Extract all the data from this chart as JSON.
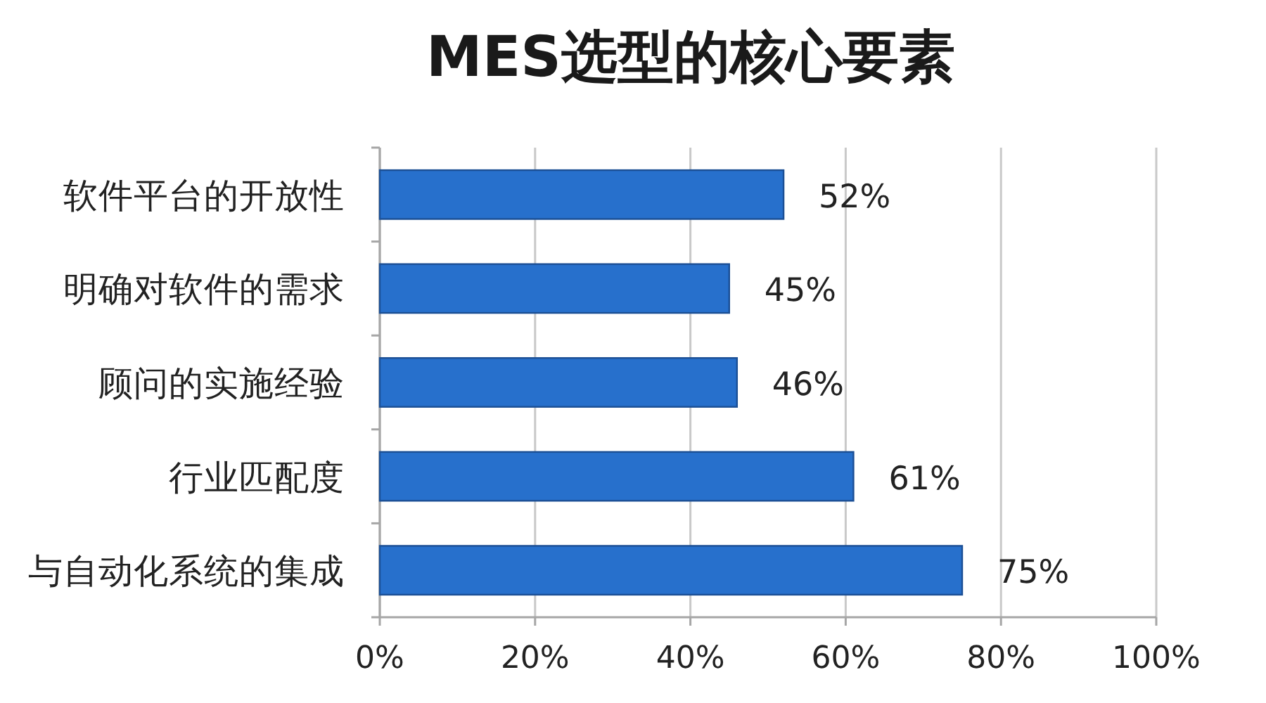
{
  "chart_data": {
    "type": "bar",
    "title": "MES选型的核心要素",
    "orientation": "horizontal",
    "categories": [
      "软件平台的开放性",
      "明确对软件的需求",
      "顾问的实施经验",
      "行业匹配度",
      "与自动化系统的集成"
    ],
    "values": [
      52,
      45,
      46,
      61,
      75
    ],
    "color": "#2770cc",
    "value_labels": [
      "52%",
      "45%",
      "46%",
      "61%",
      "75%"
    ],
    "xlim": [
      0,
      100
    ],
    "xticks": [
      {
        "value": 0,
        "label": "0%"
      },
      {
        "value": 20,
        "label": "20%"
      },
      {
        "value": 40,
        "label": "40%"
      },
      {
        "value": 60,
        "label": "60%"
      },
      {
        "value": 80,
        "label": "80%"
      },
      {
        "value": 100,
        "label": "100%"
      }
    ],
    "grid": "x"
  }
}
